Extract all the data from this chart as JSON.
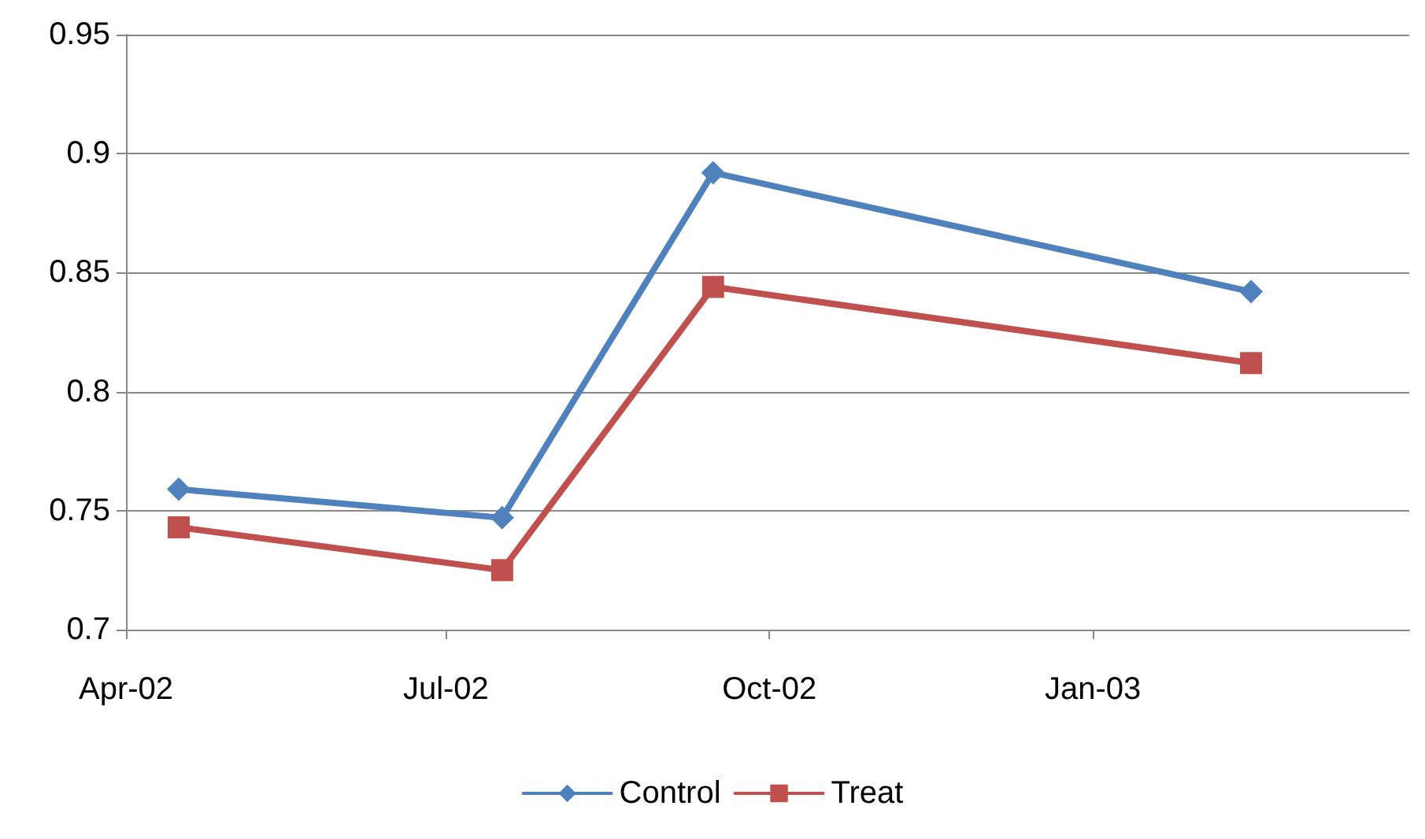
{
  "chart_data": {
    "type": "line",
    "series": [
      {
        "name": "Control",
        "color": "#4f81bd",
        "marker": "diamond",
        "x": [
          "2002-04-16",
          "2002-07-17",
          "2002-09-15",
          "2003-02-15"
        ],
        "values": [
          0.759,
          0.747,
          0.892,
          0.842
        ]
      },
      {
        "name": "Treat",
        "color": "#c0504d",
        "marker": "square",
        "x": [
          "2002-04-16",
          "2002-07-17",
          "2002-09-15",
          "2003-02-15"
        ],
        "values": [
          0.743,
          0.725,
          0.844,
          0.812
        ]
      }
    ],
    "xlim": [
      "2002-04-01",
      "2003-04-01"
    ],
    "xticks": [
      {
        "value": "2002-04-01",
        "label": "Apr-02"
      },
      {
        "value": "2002-07-01",
        "label": "Jul-02"
      },
      {
        "value": "2002-10-01",
        "label": "Oct-02"
      },
      {
        "value": "2003-01-01",
        "label": "Jan-03"
      }
    ],
    "ylim": [
      0.7,
      0.95
    ],
    "yticks": [
      0.7,
      0.75,
      0.8,
      0.85,
      0.9,
      0.95
    ],
    "grid": "y",
    "legend": "bottom",
    "line_style": "solid"
  }
}
